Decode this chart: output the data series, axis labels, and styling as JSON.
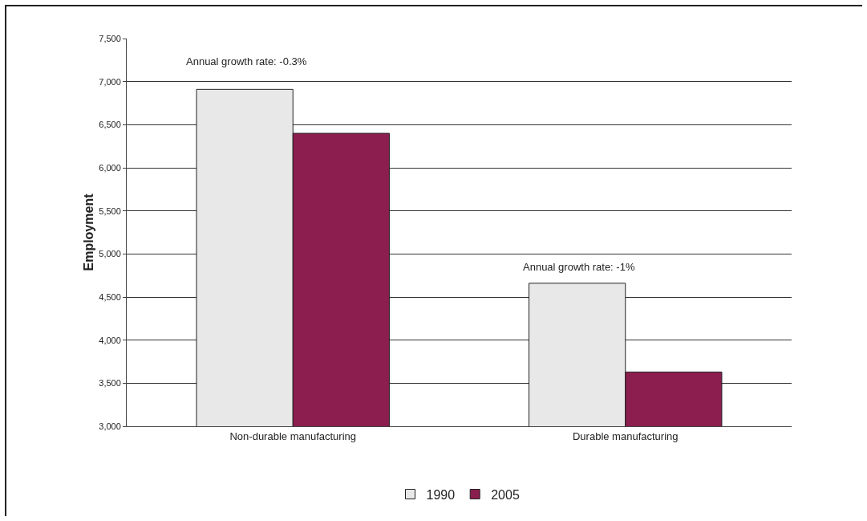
{
  "chart_data": {
    "type": "bar",
    "ylabel": "Employment",
    "categories": [
      "Non-durable manufacturing",
      "Durable manufacturing"
    ],
    "series": [
      {
        "name": "1990",
        "color": "#e8e8e8",
        "values": [
          6910,
          4660
        ]
      },
      {
        "name": "2005",
        "color": "#8b1e4f",
        "values": [
          6400,
          3630
        ]
      }
    ],
    "ylim": [
      3000,
      7500
    ],
    "yticks": [
      {
        "value": 3000,
        "label": "3,000"
      },
      {
        "value": 3500,
        "label": "3,500"
      },
      {
        "value": 4000,
        "label": "4,000"
      },
      {
        "value": 4500,
        "label": "4,500"
      },
      {
        "value": 5000,
        "label": "5,000"
      },
      {
        "value": 5500,
        "label": "5,500"
      },
      {
        "value": 6000,
        "label": "6,000"
      },
      {
        "value": 6500,
        "label": "6,500"
      },
      {
        "value": 7000,
        "label": "7,000"
      },
      {
        "value": 7500,
        "label": "7,500"
      }
    ],
    "grid": "y",
    "legend": "bottom",
    "annotations": [
      "Annual growth rate: -0.3%",
      "Annual growth rate: -1%"
    ]
  }
}
